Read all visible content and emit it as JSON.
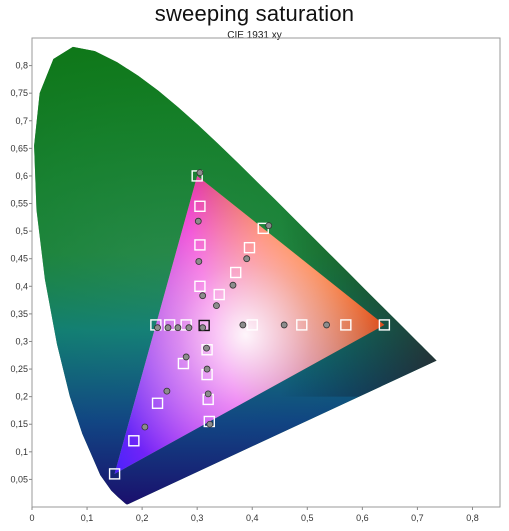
{
  "chart_data": {
    "type": "scatter",
    "title": "sweeping saturation",
    "subtitle": "CIE 1931 xy",
    "xlabel": "",
    "ylabel": "",
    "xlim": [
      0,
      0.85
    ],
    "ylim": [
      0,
      0.85
    ],
    "x_ticks": [
      "0",
      "0,1",
      "0,2",
      "0,3",
      "0,4",
      "0,5",
      "0,6",
      "0,7",
      "0,8"
    ],
    "y_ticks": [
      "0,05",
      "0,1",
      "0,15",
      "0,2",
      "0,25",
      "0,3",
      "0,35",
      "0,4",
      "0,45",
      "0,5",
      "0,55",
      "0,6",
      "0,65",
      "0,7",
      "0,75",
      "0,8"
    ],
    "grid": false,
    "gamut_triangle": [
      [
        0.64,
        0.33
      ],
      [
        0.3,
        0.6
      ],
      [
        0.15,
        0.06
      ]
    ],
    "white_point": [
      0.3127,
      0.329
    ],
    "series": [
      {
        "marker": "square",
        "points": [
          [
            0.3127,
            0.329
          ],
          [
            0.4,
            0.33
          ],
          [
            0.49,
            0.33
          ],
          [
            0.57,
            0.33
          ],
          [
            0.64,
            0.33
          ],
          [
            0.28,
            0.33
          ],
          [
            0.25,
            0.33
          ],
          [
            0.225,
            0.33
          ],
          [
            0.305,
            0.4
          ],
          [
            0.305,
            0.475
          ],
          [
            0.305,
            0.545
          ],
          [
            0.3,
            0.6
          ],
          [
            0.34,
            0.385
          ],
          [
            0.37,
            0.425
          ],
          [
            0.395,
            0.47
          ],
          [
            0.42,
            0.505
          ],
          [
            0.275,
            0.26
          ],
          [
            0.228,
            0.188
          ],
          [
            0.185,
            0.12
          ],
          [
            0.15,
            0.06
          ],
          [
            0.318,
            0.285
          ],
          [
            0.318,
            0.24
          ],
          [
            0.32,
            0.195
          ],
          [
            0.322,
            0.155
          ]
        ]
      },
      {
        "marker": "circle",
        "points": [
          [
            0.305,
            0.606
          ],
          [
            0.302,
            0.518
          ],
          [
            0.303,
            0.445
          ],
          [
            0.31,
            0.383
          ],
          [
            0.383,
            0.33
          ],
          [
            0.458,
            0.33
          ],
          [
            0.535,
            0.33
          ],
          [
            0.335,
            0.365
          ],
          [
            0.365,
            0.402
          ],
          [
            0.39,
            0.45
          ],
          [
            0.43,
            0.51
          ],
          [
            0.228,
            0.325
          ],
          [
            0.247,
            0.325
          ],
          [
            0.265,
            0.325
          ],
          [
            0.285,
            0.325
          ],
          [
            0.31,
            0.325
          ],
          [
            0.28,
            0.272
          ],
          [
            0.245,
            0.21
          ],
          [
            0.205,
            0.145
          ],
          [
            0.317,
            0.288
          ],
          [
            0.318,
            0.25
          ],
          [
            0.32,
            0.205
          ],
          [
            0.323,
            0.15
          ]
        ]
      }
    ]
  }
}
